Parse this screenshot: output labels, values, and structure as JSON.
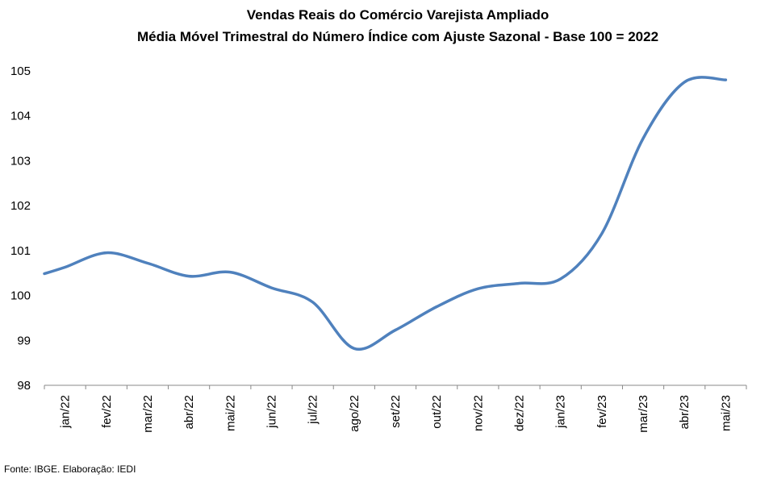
{
  "chart_data": {
    "type": "line",
    "title": "Vendas Reais do Comércio Varejista Ampliado",
    "subtitle": "Média Móvel Trimestral do Número Índice com Ajuste Sazonal - Base 100 = 2022",
    "xlabel": "",
    "ylabel": "",
    "categories": [
      "jan/22",
      "fev/22",
      "mar/22",
      "abr/22",
      "mai/22",
      "jun/22",
      "jul/22",
      "ago/22",
      "set/22",
      "out/22",
      "nov/22",
      "dez/22",
      "jan/23",
      "fev/23",
      "mar/23",
      "abr/23",
      "mai/23"
    ],
    "series": [
      {
        "values": [
          100.63,
          100.95,
          100.72,
          100.43,
          100.52,
          100.17,
          99.85,
          98.82,
          99.23,
          99.75,
          100.15,
          100.27,
          100.37,
          101.38,
          103.5,
          104.75,
          104.8
        ]
      }
    ],
    "ylim": [
      98,
      105
    ],
    "yticks": [
      98,
      99,
      100,
      101,
      102,
      103,
      104,
      105
    ],
    "grid": false,
    "legend": "none",
    "colors": {
      "line": "#4f81bd",
      "axis": "#888888"
    }
  },
  "source": "Fonte: IBGE. Elaboração: IEDI"
}
